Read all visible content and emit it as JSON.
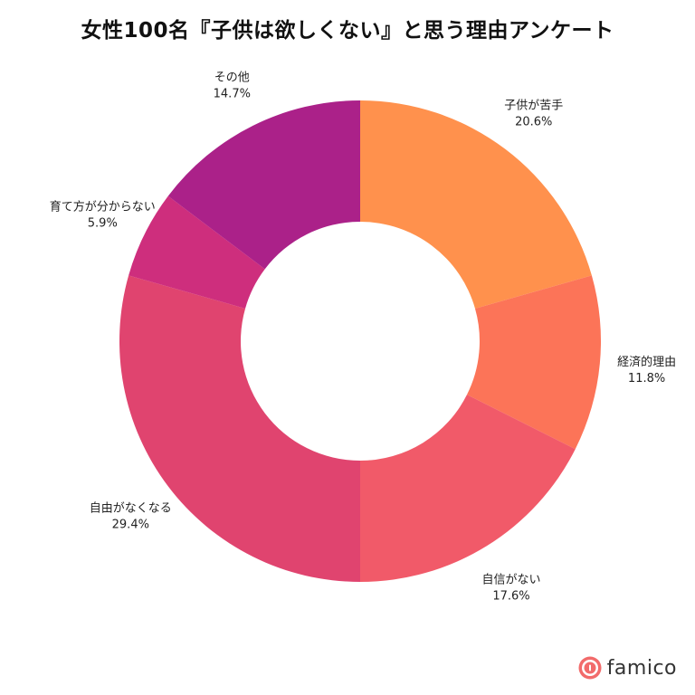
{
  "chart_data": {
    "type": "pie",
    "variant": "donut",
    "title": "女性100名『子供は欲しくない』と思う理由アンケート",
    "start_angle": "top",
    "direction": "clockwise",
    "slices": [
      {
        "label": "子供が苦手",
        "value": 20.6,
        "value_label": "20.6%",
        "color": "#FF914D"
      },
      {
        "label": "経済的理由",
        "value": 11.8,
        "value_label": "11.8%",
        "color": "#FC7458"
      },
      {
        "label": "自信がない",
        "value": 17.6,
        "value_label": "17.6%",
        "color": "#F15A69"
      },
      {
        "label": "自由がなくなる",
        "value": 29.4,
        "value_label": "29.4%",
        "color": "#E0446F"
      },
      {
        "label": "育て方が分からない",
        "value": 5.9,
        "value_label": "5.9%",
        "color": "#CE2E7D"
      },
      {
        "label": "その他",
        "value": 14.7,
        "value_label": "14.7%",
        "color": "#AB2189"
      }
    ]
  },
  "brand": {
    "name": "famico",
    "icon": "famico-logo-icon",
    "color": "#F26B6B"
  }
}
